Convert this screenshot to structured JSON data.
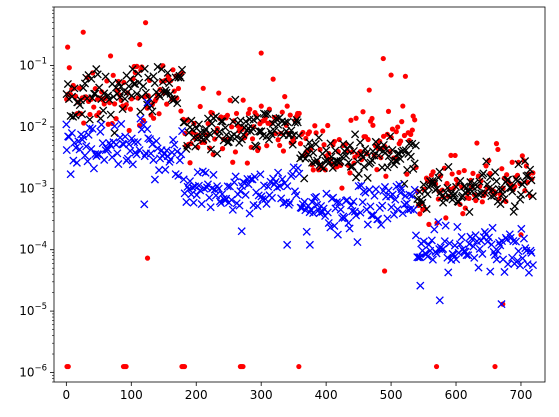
{
  "chart_data": {
    "type": "scatter",
    "title": "",
    "xlabel": "",
    "ylabel": "",
    "xlim": [
      -19,
      737
    ],
    "ylim": [
      7e-07,
      0.9
    ],
    "yscale": "log",
    "grid": false,
    "legend": "none",
    "x_ticks": [
      0,
      100,
      200,
      300,
      400,
      500,
      600,
      700
    ],
    "y_ticks": [
      1e-06,
      1e-05,
      0.0001,
      0.001,
      0.01,
      0.1
    ],
    "y_tick_labels": [
      {
        "base": "10",
        "exp": "−6"
      },
      {
        "base": "10",
        "exp": "−5"
      },
      {
        "base": "10",
        "exp": "−4"
      },
      {
        "base": "10",
        "exp": "−3"
      },
      {
        "base": "10",
        "exp": "−2"
      },
      {
        "base": "10",
        "exp": "−1"
      }
    ],
    "series": [
      {
        "marker": "dot",
        "color": "#ff0000",
        "segments": [
          {
            "x0": 0,
            "x1": 90,
            "mean": 0.035,
            "spread": 0.55
          },
          {
            "x0": 90,
            "x1": 180,
            "mean": 0.035,
            "spread": 0.55
          },
          {
            "x0": 180,
            "x1": 270,
            "mean": 0.008,
            "spread": 0.5
          },
          {
            "x0": 270,
            "x1": 360,
            "mean": 0.012,
            "spread": 0.5
          },
          {
            "x0": 360,
            "x1": 450,
            "mean": 0.004,
            "spread": 0.5
          },
          {
            "x0": 450,
            "x1": 540,
            "mean": 0.006,
            "spread": 0.5
          },
          {
            "x0": 540,
            "x1": 630,
            "mean": 0.0012,
            "spread": 0.5
          },
          {
            "x0": 630,
            "x1": 720,
            "mean": 0.0015,
            "spread": 0.5
          }
        ],
        "outliers": [
          {
            "x": 2,
            "y": 0.2
          },
          {
            "x": 26,
            "y": 0.35
          },
          {
            "x": 122,
            "y": 0.5
          },
          {
            "x": 113,
            "y": 0.22
          },
          {
            "x": 125,
            "y": 7.3e-05
          },
          {
            "x": 300,
            "y": 0.16
          },
          {
            "x": 488,
            "y": 0.13
          },
          {
            "x": 490,
            "y": 4.5e-05
          },
          {
            "x": 500,
            "y": 0.07
          },
          {
            "x": 1,
            "y": 1.25e-06
          },
          {
            "x": 3,
            "y": 1.25e-06
          },
          {
            "x": 88,
            "y": 1.25e-06
          },
          {
            "x": 90,
            "y": 1.25e-06
          },
          {
            "x": 92,
            "y": 1.25e-06
          },
          {
            "x": 178,
            "y": 1.25e-06
          },
          {
            "x": 180,
            "y": 1.25e-06
          },
          {
            "x": 182,
            "y": 1.25e-06
          },
          {
            "x": 268,
            "y": 1.25e-06
          },
          {
            "x": 270,
            "y": 1.25e-06
          },
          {
            "x": 272,
            "y": 1.25e-06
          },
          {
            "x": 358,
            "y": 1.25e-06
          },
          {
            "x": 570,
            "y": 1.25e-06
          },
          {
            "x": 660,
            "y": 1.25e-06
          },
          {
            "x": 672,
            "y": 1.3e-05
          }
        ]
      },
      {
        "marker": "x",
        "color": "#000000",
        "segments": [
          {
            "x0": 0,
            "x1": 90,
            "mean": 0.035,
            "spread": 0.35
          },
          {
            "x0": 90,
            "x1": 180,
            "mean": 0.04,
            "spread": 0.35
          },
          {
            "x0": 180,
            "x1": 270,
            "mean": 0.008,
            "spread": 0.3
          },
          {
            "x0": 270,
            "x1": 360,
            "mean": 0.009,
            "spread": 0.3
          },
          {
            "x0": 360,
            "x1": 450,
            "mean": 0.003,
            "spread": 0.3
          },
          {
            "x0": 450,
            "x1": 540,
            "mean": 0.0035,
            "spread": 0.3
          },
          {
            "x0": 540,
            "x1": 630,
            "mean": 0.0009,
            "spread": 0.3
          },
          {
            "x0": 630,
            "x1": 720,
            "mean": 0.001,
            "spread": 0.3
          }
        ],
        "outliers": []
      },
      {
        "marker": "x",
        "color": "#0000ff",
        "segments": [
          {
            "x0": 0,
            "x1": 90,
            "mean": 0.004,
            "spread": 0.4
          },
          {
            "x0": 90,
            "x1": 180,
            "mean": 0.004,
            "spread": 0.4
          },
          {
            "x0": 180,
            "x1": 270,
            "mean": 0.0009,
            "spread": 0.35
          },
          {
            "x0": 270,
            "x1": 360,
            "mean": 0.001,
            "spread": 0.35
          },
          {
            "x0": 360,
            "x1": 450,
            "mean": 0.0004,
            "spread": 0.35
          },
          {
            "x0": 450,
            "x1": 540,
            "mean": 0.0006,
            "spread": 0.35
          },
          {
            "x0": 540,
            "x1": 630,
            "mean": 0.0001,
            "spread": 0.35
          },
          {
            "x0": 630,
            "x1": 720,
            "mean": 0.0001,
            "spread": 0.35
          }
        ],
        "outliers": [
          {
            "x": 0,
            "y": 0.011
          },
          {
            "x": 120,
            "y": 0.00055
          },
          {
            "x": 125,
            "y": 0.025
          },
          {
            "x": 270,
            "y": 0.0002
          },
          {
            "x": 340,
            "y": 0.00012
          },
          {
            "x": 375,
            "y": 0.00012
          },
          {
            "x": 545,
            "y": 2.6e-05
          },
          {
            "x": 575,
            "y": 1.5e-05
          },
          {
            "x": 670,
            "y": 1.3e-05
          }
        ]
      }
    ]
  }
}
